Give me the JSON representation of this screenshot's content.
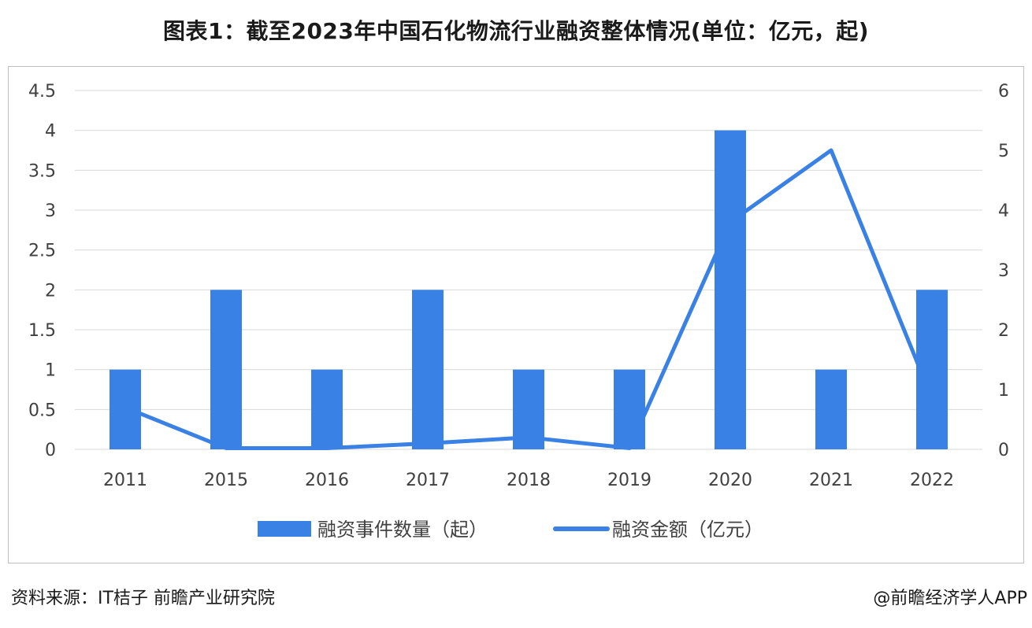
{
  "title": "图表1：截至2023年中国石化物流行业融资整体情况(单位：亿元，起)",
  "source": "资料来源：IT桔子 前瞻产业研究院",
  "credit": "@前瞻经济学人APP",
  "colors": {
    "bar": "#3a81e6",
    "line": "#3a81e6",
    "grid": "#d9d9d9",
    "axis_text": "#404040"
  },
  "chart_data": {
    "type": "bar+line",
    "categories": [
      "2011",
      "2015",
      "2016",
      "2017",
      "2018",
      "2019",
      "2020",
      "2021",
      "2022"
    ],
    "series": [
      {
        "name": "融资事件数量（起）",
        "type": "bar",
        "axis": "left",
        "values": [
          1,
          2,
          1,
          2,
          1,
          1,
          4,
          1,
          2
        ]
      },
      {
        "name": "融资金额（亿元）",
        "type": "line",
        "axis": "right",
        "values": [
          0.7,
          0.02,
          0.02,
          0.1,
          0.2,
          0.02,
          3.8,
          5.0,
          0.85
        ]
      }
    ],
    "y_left": {
      "min": 0,
      "max": 4.5,
      "ticks": [
        "0",
        "0.5",
        "1",
        "1.5",
        "2",
        "2.5",
        "3",
        "3.5",
        "4",
        "4.5"
      ]
    },
    "y_right": {
      "min": 0,
      "max": 6,
      "ticks": [
        "0",
        "1",
        "2",
        "3",
        "4",
        "5",
        "6"
      ]
    },
    "grid": true,
    "legend_position": "bottom"
  }
}
